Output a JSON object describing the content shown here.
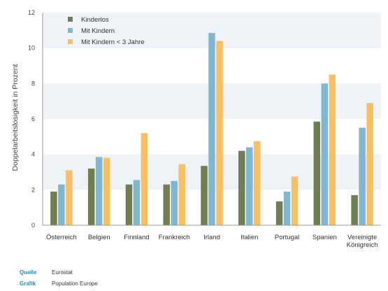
{
  "chart_data": {
    "type": "bar",
    "categories": [
      "Österreich",
      "Belgien",
      "Finnland",
      "Frankreich",
      "Irland",
      "Italien",
      "Portugal",
      "Spanien",
      "Vereinigte Königreich"
    ],
    "category_lines": [
      [
        "Österreich"
      ],
      [
        "Belgien"
      ],
      [
        "Finnland"
      ],
      [
        "Frankreich"
      ],
      [
        "Irland"
      ],
      [
        "Italien"
      ],
      [
        "Portugal"
      ],
      [
        "Spanien"
      ],
      [
        "Vereinigte",
        "Königreich"
      ]
    ],
    "series": [
      {
        "name": "Kinderlos",
        "color": "#717e52",
        "values": [
          1.9,
          3.2,
          2.3,
          2.3,
          3.35,
          4.2,
          1.35,
          5.85,
          1.7
        ]
      },
      {
        "name": "Mit Kindern",
        "color": "#7fb6d2",
        "values": [
          2.3,
          3.85,
          2.55,
          2.5,
          10.85,
          4.4,
          1.9,
          8.0,
          5.5
        ]
      },
      {
        "name": "Mit Kindern < 3 Jahre",
        "color": "#f9bf64",
        "values": [
          3.1,
          3.8,
          5.2,
          3.45,
          10.4,
          4.75,
          2.75,
          8.5,
          6.9
        ]
      }
    ],
    "ylabel": "Doppelarbeitslosigkeit in Prozent",
    "xlabel": "",
    "ylim": [
      0,
      12
    ],
    "yticks": [
      0,
      2,
      4,
      6,
      8,
      10,
      12
    ],
    "grid": "horizontal bands",
    "legend_position": "top-left"
  },
  "footer": {
    "source_label": "Quelle",
    "source_value": "Eurostat",
    "graphic_label": "Grafik",
    "graphic_value": "Population Europe"
  }
}
